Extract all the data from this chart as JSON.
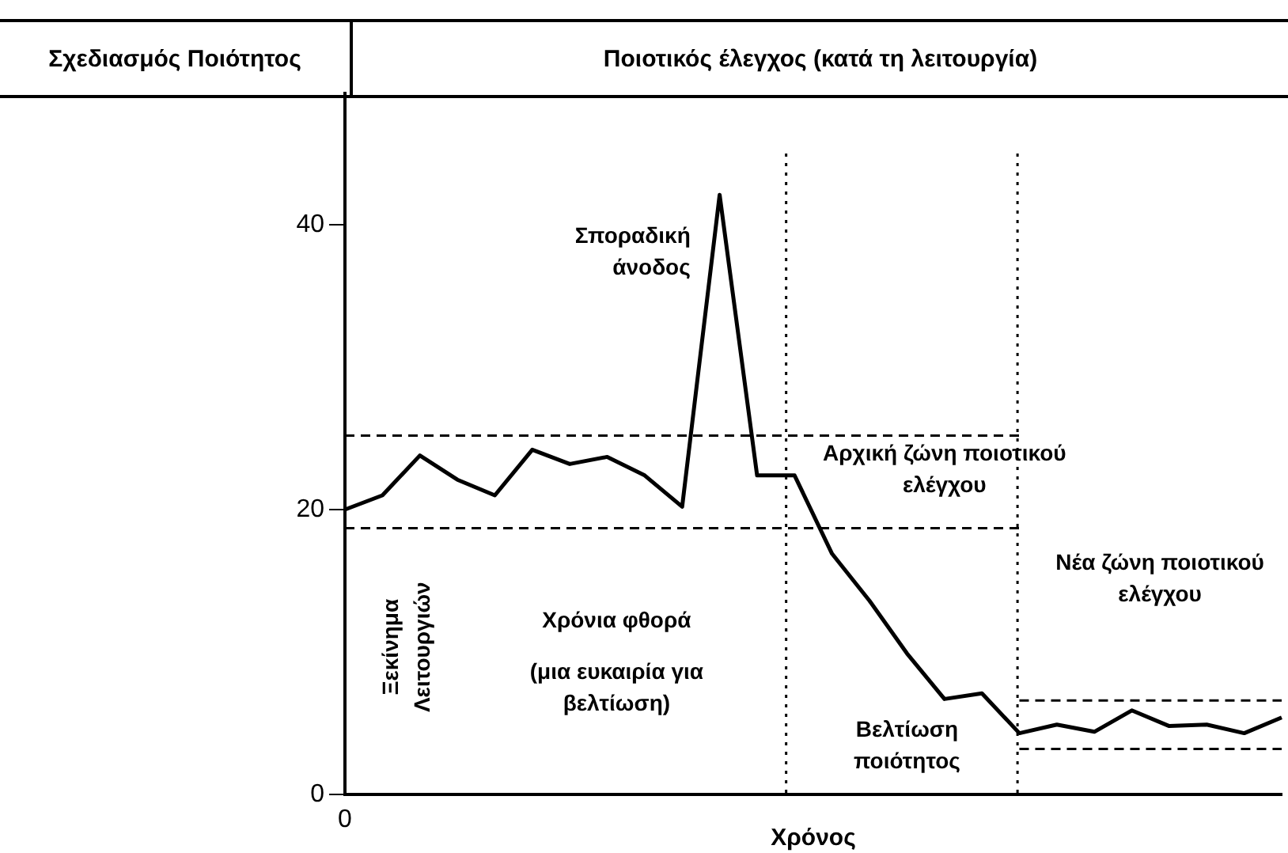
{
  "chart_data": {
    "type": "line",
    "title": "Ποιοτικός έλεγχος (κατά τη λειτουργία)",
    "xlabel": "Χρόνος",
    "categories": [
      null,
      null,
      null,
      null,
      null,
      null,
      null,
      null,
      null,
      null,
      null,
      null,
      null,
      null,
      null,
      null,
      null,
      null,
      null,
      null,
      null,
      null,
      null,
      null,
      null,
      null
    ],
    "series": [
      {
        "color": "#000000",
        "values": [
          20,
          21,
          23.8,
          22.1,
          21,
          24.2,
          23.2,
          23.7,
          22.4,
          20.2,
          42.1,
          22.4,
          22.4,
          16.9,
          13.6,
          9.9,
          6.7,
          7.1,
          4.3,
          4.9,
          4.4,
          5.9,
          4.8,
          4.9,
          4.3,
          5.4
        ]
      },
      {
        "color": "#000000",
        "line_style": "dashed",
        "values": [
          25.2,
          25.2,
          25.2,
          25.2,
          25.2,
          25.2,
          25.2,
          25.2,
          25.2,
          25.2,
          25.2,
          25.2,
          25.2,
          25.2,
          25.2,
          25.2,
          25.2,
          25.2,
          25.2,
          null,
          null,
          null,
          null,
          null,
          null,
          null
        ]
      },
      {
        "color": "#000000",
        "line_style": "dashed",
        "values": [
          18.7,
          18.7,
          18.7,
          18.7,
          18.7,
          18.7,
          18.7,
          18.7,
          18.7,
          18.7,
          18.7,
          18.7,
          18.7,
          18.7,
          18.7,
          18.7,
          18.7,
          18.7,
          18.7,
          null,
          null,
          null,
          null,
          null,
          null,
          null
        ]
      },
      {
        "color": "#000000",
        "line_style": "dashed",
        "values": [
          null,
          null,
          null,
          null,
          null,
          null,
          null,
          null,
          null,
          null,
          null,
          null,
          null,
          null,
          null,
          null,
          null,
          null,
          6.6,
          6.6,
          6.6,
          6.6,
          6.6,
          6.6,
          6.6,
          6.6
        ]
      },
      {
        "color": "#000000",
        "line_style": "dashed",
        "values": [
          null,
          null,
          null,
          null,
          null,
          null,
          null,
          null,
          null,
          null,
          null,
          null,
          null,
          null,
          null,
          null,
          null,
          null,
          3.2,
          3.2,
          3.2,
          3.2,
          3.2,
          3.2,
          3.2,
          3.2
        ]
      }
    ],
    "ylim": [
      0,
      45
    ],
    "yticks": [
      0,
      20,
      40
    ],
    "grid": false,
    "legend": false,
    "marker": "none",
    "line_style": "solid",
    "annotations": [
      "Σχεδιασμός Ποιότητος",
      "Σποραδική άνοδος",
      "Χρόνια φθορά",
      "(μια ευκαιρία για βελτίωση)",
      "Βελτίωση ποιότητος",
      "Ξεκίνημα Λειτουργιών",
      "Αρχική ζώνη ποιοτικού ελέγχου",
      "Νέα ζώνη ποιοτικού ελέγχου",
      "0"
    ]
  }
}
